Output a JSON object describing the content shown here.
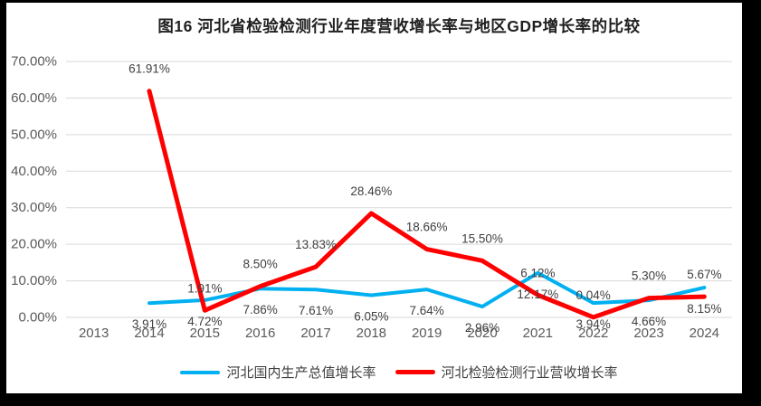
{
  "window": {
    "outer_background": "#000000",
    "page_background": "#ffffff"
  },
  "chart_data": {
    "type": "line",
    "title": "图16 河北省检验检测行业年度营收增长率与地区GDP增长率的比较",
    "categories": [
      "2013",
      "2014",
      "2015",
      "2016",
      "2017",
      "2018",
      "2019",
      "2020",
      "2021",
      "2022",
      "2023",
      "2024"
    ],
    "series": [
      {
        "key": "gdp-growth",
        "name": "河北国内生产总值增长率",
        "color": "#00b0f0",
        "stroke_width": 4,
        "label_side": "below",
        "values": [
          null,
          3.91,
          4.72,
          7.86,
          7.61,
          6.05,
          7.64,
          2.96,
          12.17,
          3.94,
          4.66,
          8.15
        ],
        "labels": [
          "",
          "3.91%",
          "4.72%",
          "7.86%",
          "7.61%",
          "6.05%",
          "7.64%",
          "2.96%",
          "12.17%",
          "3.94%",
          "4.66%",
          "8.15%"
        ]
      },
      {
        "key": "revenue-growth",
        "name": "河北检验检测行业营收增长率",
        "color": "#ff0000",
        "stroke_width": 5,
        "label_side": "above",
        "values": [
          null,
          61.91,
          1.91,
          8.5,
          13.83,
          28.46,
          18.66,
          15.5,
          6.12,
          0.04,
          5.3,
          5.67
        ],
        "labels": [
          "",
          "61.91%",
          "1.91%",
          "8.50%",
          "13.83%",
          "28.46%",
          "18.66%",
          "15.50%",
          "6.12%",
          "0.04%",
          "5.30%",
          "5.67%"
        ]
      }
    ],
    "y_axis": {
      "min": 0,
      "max": 70,
      "step": 10,
      "tick_labels": [
        "0.00%",
        "10.00%",
        "20.00%",
        "30.00%",
        "40.00%",
        "50.00%",
        "60.00%",
        "70.00%"
      ]
    },
    "x_axis": {
      "tick_labels": [
        "2013",
        "2014",
        "2015",
        "2016",
        "2017",
        "2018",
        "2019",
        "2020",
        "2021",
        "2022",
        "2023",
        "2024"
      ]
    },
    "legend": {
      "position": "bottom",
      "items": [
        "河北国内生产总值增长率",
        "河北检验检测行业营收增长率"
      ]
    },
    "grid": true,
    "colors": {
      "gridline": "#d9d9d9",
      "axis_text": "#595959",
      "data_label": "#404040",
      "title_text": "#1f1f1f"
    }
  }
}
